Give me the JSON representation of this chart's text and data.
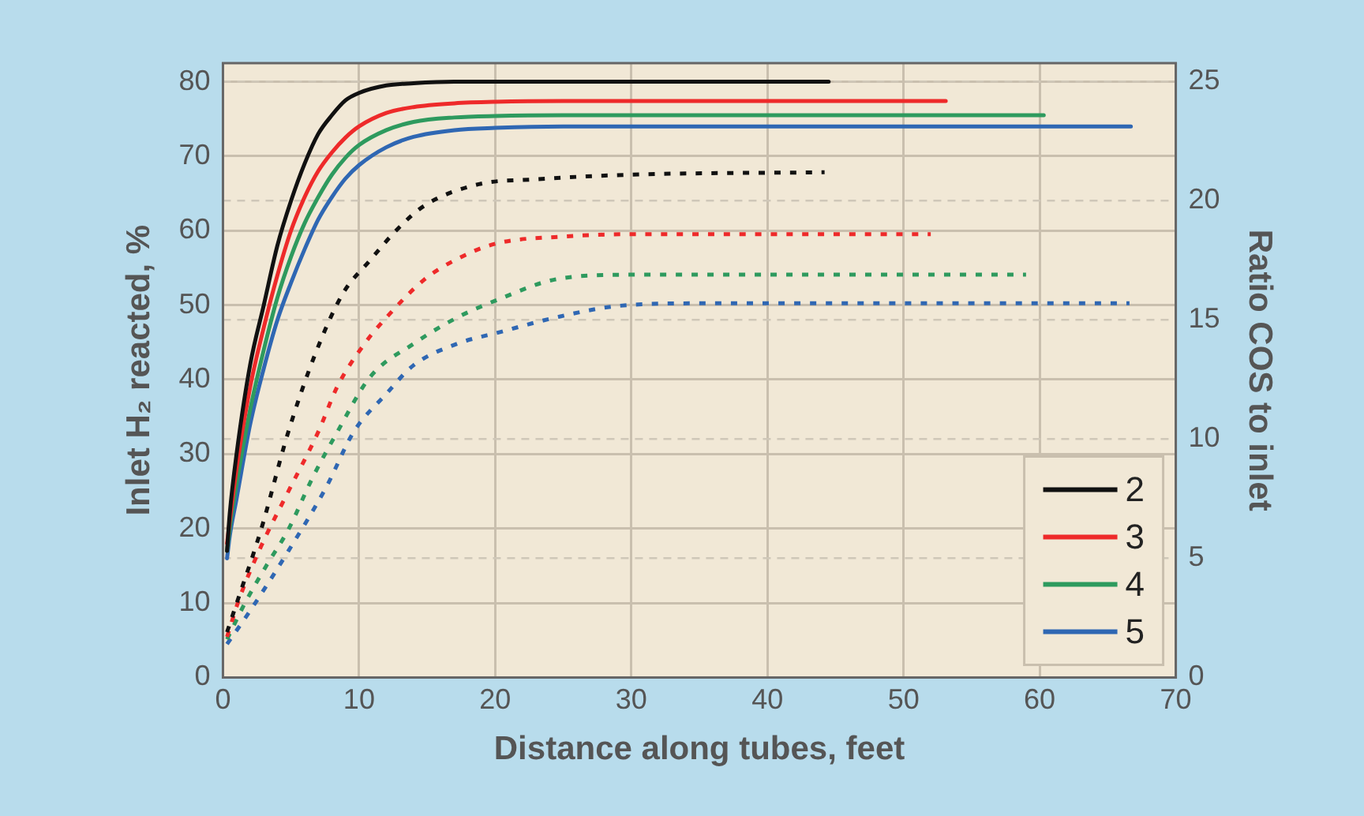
{
  "chart_data": {
    "type": "line",
    "xlabel": "Distance along tubes, feet",
    "ylabel": "Inlet H₂ reacted, %",
    "y2label": "Ratio COS to inlet",
    "xlim": [
      0,
      70
    ],
    "xticks": [
      0,
      10,
      20,
      30,
      40,
      50,
      60,
      70
    ],
    "ylim": [
      0,
      82.5
    ],
    "yticks": [
      0,
      10,
      20,
      30,
      40,
      50,
      60,
      70,
      80
    ],
    "y2lim": [
      0,
      25.78
    ],
    "y2ticks": [
      0,
      5,
      10,
      15,
      20,
      25
    ],
    "grid": true,
    "legend": "bottom right",
    "marker": "none",
    "series": [
      {
        "name": "2",
        "color": "#111111",
        "line_style": "solid",
        "x": [
          0.3,
          0.5,
          1,
          2,
          3,
          4,
          5,
          6,
          7,
          8,
          9,
          10,
          12,
          14,
          17,
          20,
          30,
          44.5
        ],
        "values": [
          17,
          22,
          30,
          42,
          50,
          58,
          64,
          69,
          73,
          75.5,
          77.5,
          78.5,
          79.5,
          79.8,
          80,
          80,
          80,
          80
        ]
      },
      {
        "name": "3",
        "color": "#ee2a2a",
        "line_style": "solid",
        "x": [
          0.3,
          0.5,
          1,
          2,
          3,
          4,
          5,
          6,
          7,
          8,
          9,
          10,
          12,
          14,
          17,
          20,
          25,
          53.1
        ],
        "values": [
          18,
          21,
          28,
          39,
          47,
          54,
          60,
          64.5,
          68,
          70.5,
          72.5,
          74,
          75.8,
          76.6,
          77.1,
          77.3,
          77.4,
          77.4
        ]
      },
      {
        "name": "4",
        "color": "#2e9a5e",
        "line_style": "solid",
        "x": [
          0.3,
          0.5,
          1,
          2,
          3,
          4,
          5,
          6,
          7,
          8,
          9,
          10,
          12,
          14,
          17,
          20,
          25,
          60.3
        ],
        "values": [
          17,
          20,
          26,
          36,
          44,
          51,
          56.5,
          61,
          64.5,
          67.5,
          69.8,
          71.5,
          73.5,
          74.6,
          75.2,
          75.4,
          75.5,
          75.5
        ]
      },
      {
        "name": "5",
        "color": "#2f67b3",
        "line_style": "solid",
        "x": [
          0.3,
          0.5,
          1,
          2,
          3,
          4,
          5,
          6,
          7,
          8,
          9,
          10,
          12,
          14,
          17,
          20,
          25,
          66.7
        ],
        "values": [
          16,
          19,
          24,
          34,
          41.5,
          48,
          53,
          57.5,
          61.5,
          64.5,
          67,
          68.8,
          71.2,
          72.6,
          73.5,
          73.8,
          74,
          74
        ]
      },
      {
        "color": "#111111",
        "line_style": "dotted",
        "axis": "y2",
        "x": [
          0.3,
          1,
          2.8,
          4.8,
          6.8,
          8.8,
          10.8,
          12.8,
          14.8,
          18.8,
          22.8,
          30,
          44.2
        ],
        "values": [
          1.9,
          3.1,
          6.2,
          10.3,
          13.6,
          16.1,
          17.5,
          18.8,
          19.8,
          20.7,
          20.9,
          21.1,
          21.2
        ]
      },
      {
        "color": "#ee2a2a",
        "line_style": "dotted",
        "axis": "y2",
        "x": [
          0.3,
          1.2,
          2.8,
          4.8,
          7,
          8.4,
          10.4,
          12,
          14.8,
          17,
          20,
          25,
          30,
          52
        ],
        "values": [
          1.7,
          3.3,
          5.5,
          7.8,
          10.3,
          12.2,
          14.0,
          15.1,
          16.7,
          17.5,
          18.2,
          18.5,
          18.6,
          18.6
        ]
      },
      {
        "color": "#2e9a5e",
        "line_style": "dotted",
        "axis": "y2",
        "x": [
          0.3,
          1.6,
          3.2,
          4.8,
          6.6,
          8.4,
          10.8,
          14,
          17.2,
          20.4,
          24.4,
          30,
          59
        ],
        "values": [
          1.6,
          3.1,
          4.7,
          6.2,
          8.4,
          10.3,
          12.6,
          14.0,
          15.1,
          15.9,
          16.7,
          16.9,
          16.9
        ]
      },
      {
        "color": "#2f67b3",
        "line_style": "dotted",
        "axis": "y2",
        "x": [
          0.3,
          2,
          4.8,
          7.6,
          9.6,
          12,
          14,
          17.2,
          20.4,
          24.4,
          29.2,
          35,
          66.6
        ],
        "values": [
          1.4,
          2.8,
          5.3,
          8.0,
          10.3,
          11.9,
          13.1,
          14.0,
          14.5,
          15.1,
          15.6,
          15.7,
          15.7
        ]
      }
    ]
  }
}
